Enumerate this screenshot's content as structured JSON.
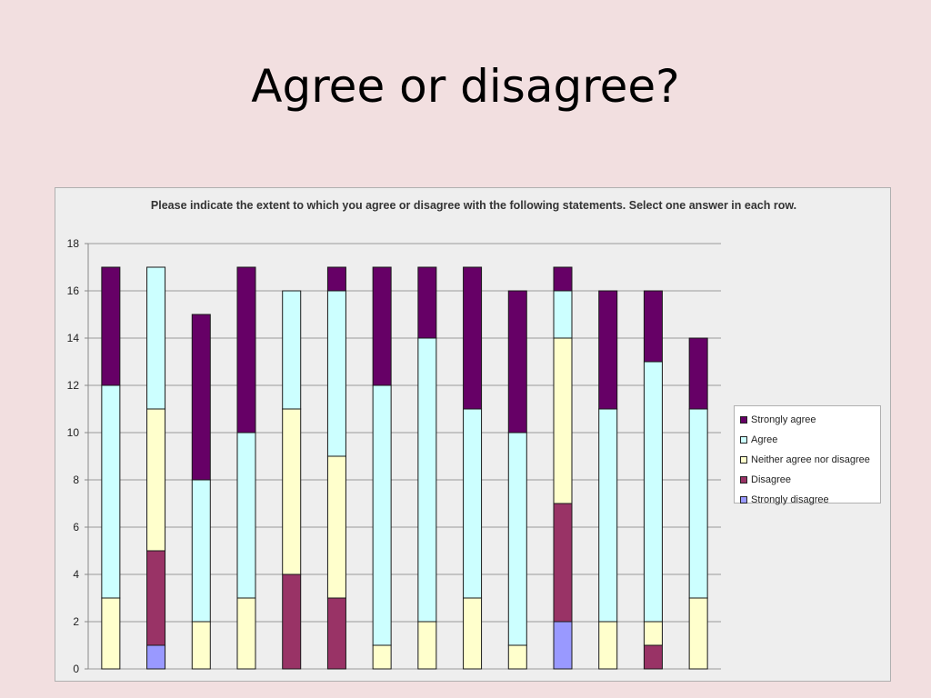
{
  "slide": {
    "title": "Agree or disagree?"
  },
  "chart_data": {
    "type": "bar",
    "stacked": true,
    "title": "Please indicate the extent to which you agree or disagree with the following statements. Select one answer in each row.",
    "xlabel": "",
    "ylabel": "",
    "ylim": [
      0,
      18
    ],
    "yticks": [
      0,
      2,
      4,
      6,
      8,
      10,
      12,
      14,
      16,
      18
    ],
    "grid": true,
    "legend_position": "right",
    "categories": [
      "",
      "",
      "",
      "",
      "",
      "",
      "",
      "",
      "",
      "",
      "",
      "",
      "",
      ""
    ],
    "series": [
      {
        "name": "Strongly disagree",
        "color": "#9999ff",
        "values": [
          0,
          1,
          0,
          0,
          0,
          0,
          0,
          0,
          0,
          0,
          2,
          0,
          0,
          0
        ]
      },
      {
        "name": "Disagree",
        "color": "#993366",
        "values": [
          0,
          4,
          0,
          0,
          4,
          3,
          0,
          0,
          0,
          0,
          5,
          0,
          1,
          0
        ]
      },
      {
        "name": "Neither agree nor disagree",
        "color": "#ffffcc",
        "values": [
          3,
          6,
          2,
          3,
          7,
          6,
          1,
          2,
          3,
          1,
          7,
          2,
          1,
          3
        ]
      },
      {
        "name": "Agree",
        "color": "#ccffff",
        "values": [
          9,
          6,
          6,
          7,
          5,
          7,
          11,
          12,
          8,
          9,
          2,
          9,
          11,
          8
        ]
      },
      {
        "name": "Strongly agree",
        "color": "#660066",
        "values": [
          5,
          0,
          7,
          7,
          0,
          1,
          5,
          3,
          6,
          6,
          1,
          5,
          3,
          3
        ]
      }
    ]
  }
}
